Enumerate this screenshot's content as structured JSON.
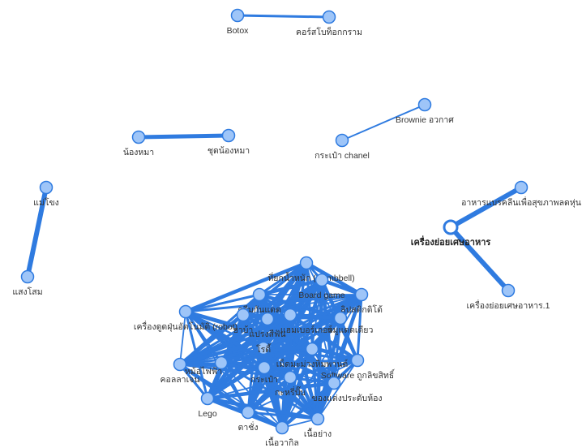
{
  "graph": {
    "nodes": [
      {
        "id": "botox",
        "label": "Botox"
      },
      {
        "id": "course",
        "label": "คอร์สโบท็อกกราม"
      },
      {
        "id": "brownie",
        "label": "Brownie อวกาศ"
      },
      {
        "id": "chanel",
        "label": "กระเป๋า chanel"
      },
      {
        "id": "dog",
        "label": "น้องหมา"
      },
      {
        "id": "dogsuit",
        "label": "ชุดน้องหมา"
      },
      {
        "id": "maekhong",
        "label": "แม่โขง"
      },
      {
        "id": "saengsom",
        "label": "แสงโสม"
      },
      {
        "id": "cleanfood",
        "label": "อาหารแบรคลีนเพื่อสุขภาพลดหุ่น"
      },
      {
        "id": "grinder",
        "label": "เครื่องย่อยเศษอาหาร",
        "selected": true
      },
      {
        "id": "grinder1",
        "label": "เครื่องย่อยเศษอาหาร.1"
      },
      {
        "id": "dumbbell",
        "label": "ที่ยกน้ำหนัก (Dumbbell)"
      },
      {
        "id": "boardgame",
        "label": "Board game"
      },
      {
        "id": "sunscreen",
        "label": "ครีมกันแดด"
      },
      {
        "id": "lipstick",
        "label": "ลิปสติกดิโด้"
      },
      {
        "id": "robot",
        "label": "เครื่องดูดฝุ่นอัตโนมัติ (robot)"
      },
      {
        "id": "ya",
        "label": "ยาบ้า"
      },
      {
        "id": "toothbrush",
        "label": "แปรงสีฟัน"
      },
      {
        "id": "hamburger",
        "label": "แฮมเบอร์เกอร์"
      },
      {
        "id": "noodle",
        "label": "หมูแดดเดียว"
      },
      {
        "id": "rosie",
        "label": "โรดี้"
      },
      {
        "id": "collagen",
        "label": "คอลลาเจน"
      },
      {
        "id": "mangrove",
        "label": "หม้อไฟฟ้า"
      },
      {
        "id": "seeds",
        "label": "เม็ดมะม่วงหิมพานต์"
      },
      {
        "id": "software",
        "label": "Software ถูกลิขสิทธิ์"
      },
      {
        "id": "bag",
        "label": "กระเป๋า"
      },
      {
        "id": "curry",
        "label": "กะหรี่ปั๊บ"
      },
      {
        "id": "lego",
        "label": "Lego"
      },
      {
        "id": "decor",
        "label": "ของแต่งประดับห้อง"
      },
      {
        "id": "tachang",
        "label": "ตาชั่ง"
      },
      {
        "id": "beef",
        "label": "เนื้อย่าง"
      },
      {
        "id": "wagyu",
        "label": "เนื้อวากิล"
      }
    ],
    "edges": [
      {
        "a": "botox",
        "b": "course",
        "w": 3
      },
      {
        "a": "chanel",
        "b": "brownie",
        "w": 2
      },
      {
        "a": "dog",
        "b": "dogsuit",
        "w": 5
      },
      {
        "a": "maekhong",
        "b": "saengsom",
        "w": 6
      },
      {
        "a": "grinder",
        "b": "cleanfood",
        "w": 6
      },
      {
        "a": "grinder",
        "b": "grinder1",
        "w": 6
      }
    ]
  }
}
